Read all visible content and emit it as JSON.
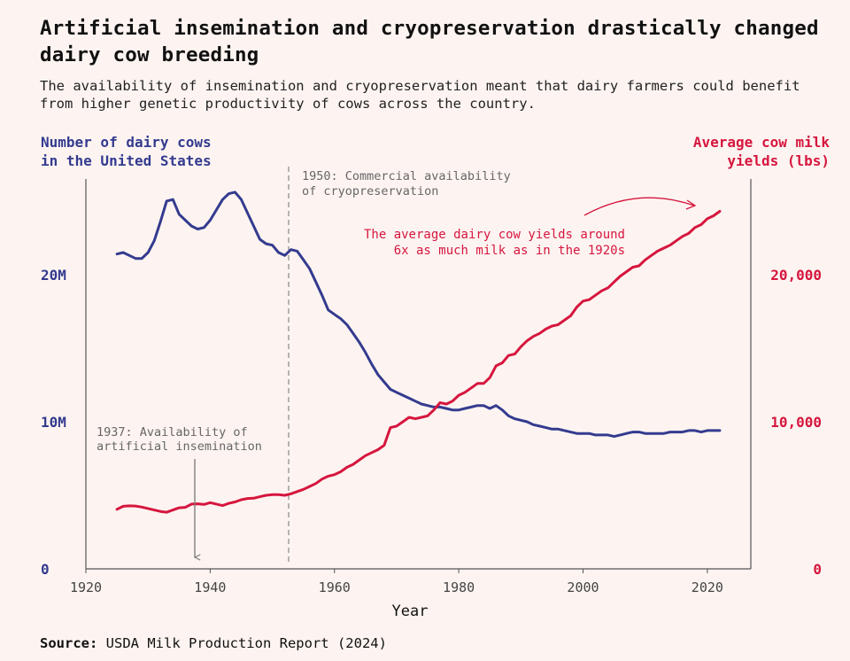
{
  "title": "Artificial insemination and cryopreservation drastically changed dairy cow breeding",
  "subtitle": "The availability of insemination and cryopreservation meant that dairy farmers could benefit from higher genetic productivity of cows across the country.",
  "source_label": "Source:",
  "source_text": "USDA Milk Production Report (2024)",
  "colors": {
    "cows": "#343b8f",
    "yield": "#d6163e",
    "axis": "#555555",
    "annotation": "#777777",
    "background": "#fdf4f1"
  },
  "chart_data": {
    "type": "line",
    "xlabel": "Year",
    "x_ticks": [
      1920,
      1940,
      1960,
      1980,
      2000,
      2020
    ],
    "xlim": [
      1920,
      2027
    ],
    "y_left": {
      "label_lines": [
        "Number of dairy cows",
        "in the United States"
      ],
      "ticks": [
        0,
        10,
        20
      ],
      "tick_labels": [
        "0",
        "10M",
        "20M"
      ],
      "unit": "million cows",
      "range": [
        0,
        26.5
      ]
    },
    "y_right": {
      "label_lines": [
        "Average cow milk",
        "yields (lbs)"
      ],
      "ticks": [
        0,
        10000,
        20000
      ],
      "tick_labels": [
        "0",
        "10,000",
        "20,000"
      ],
      "range": [
        0,
        26500
      ]
    },
    "series": [
      {
        "axis": "left",
        "x": [
          1925,
          1926,
          1927,
          1928,
          1929,
          1930,
          1931,
          1932,
          1933,
          1934,
          1935,
          1936,
          1937,
          1938,
          1939,
          1940,
          1941,
          1942,
          1943,
          1944,
          1945,
          1946,
          1947,
          1948,
          1949,
          1950,
          1951,
          1952,
          1953,
          1954,
          1955,
          1956,
          1957,
          1958,
          1959,
          1960,
          1961,
          1962,
          1963,
          1964,
          1965,
          1966,
          1967,
          1968,
          1969,
          1970,
          1971,
          1972,
          1973,
          1974,
          1975,
          1976,
          1977,
          1978,
          1979,
          1980,
          1981,
          1982,
          1983,
          1984,
          1985,
          1986,
          1987,
          1988,
          1989,
          1990,
          1991,
          1992,
          1993,
          1994,
          1995,
          1996,
          1997,
          1998,
          1999,
          2000,
          2001,
          2002,
          2003,
          2004,
          2005,
          2006,
          2007,
          2008,
          2009,
          2010,
          2011,
          2012,
          2013,
          2014,
          2015,
          2016,
          2017,
          2018,
          2019,
          2020,
          2021,
          2022
        ],
        "values": [
          21.4,
          21.5,
          21.3,
          21.1,
          21.1,
          21.5,
          22.3,
          23.6,
          25.0,
          25.1,
          24.1,
          23.7,
          23.3,
          23.1,
          23.2,
          23.7,
          24.4,
          25.1,
          25.5,
          25.6,
          25.1,
          24.2,
          23.3,
          22.4,
          22.1,
          22.0,
          21.5,
          21.3,
          21.7,
          21.6,
          21.0,
          20.4,
          19.5,
          18.6,
          17.6,
          17.3,
          17.0,
          16.6,
          16.0,
          15.4,
          14.7,
          13.9,
          13.2,
          12.7,
          12.2,
          12.0,
          11.8,
          11.6,
          11.4,
          11.2,
          11.1,
          11.0,
          11.0,
          10.9,
          10.8,
          10.8,
          10.9,
          11.0,
          11.1,
          11.1,
          10.9,
          11.1,
          10.8,
          10.4,
          10.2,
          10.1,
          10.0,
          9.8,
          9.7,
          9.6,
          9.5,
          9.5,
          9.4,
          9.3,
          9.2,
          9.2,
          9.2,
          9.1,
          9.1,
          9.1,
          9.0,
          9.1,
          9.2,
          9.3,
          9.3,
          9.2,
          9.2,
          9.2,
          9.2,
          9.3,
          9.3,
          9.3,
          9.4,
          9.4,
          9.3,
          9.4,
          9.4,
          9.4
        ]
      },
      {
        "axis": "right",
        "x": [
          1925,
          1926,
          1927,
          1928,
          1929,
          1930,
          1931,
          1932,
          1933,
          1934,
          1935,
          1936,
          1937,
          1938,
          1939,
          1940,
          1941,
          1942,
          1943,
          1944,
          1945,
          1946,
          1947,
          1948,
          1949,
          1950,
          1951,
          1952,
          1953,
          1954,
          1955,
          1956,
          1957,
          1958,
          1959,
          1960,
          1961,
          1962,
          1963,
          1964,
          1965,
          1966,
          1967,
          1968,
          1969,
          1970,
          1971,
          1972,
          1973,
          1974,
          1975,
          1976,
          1977,
          1978,
          1979,
          1980,
          1981,
          1982,
          1983,
          1984,
          1985,
          1986,
          1987,
          1988,
          1989,
          1990,
          1991,
          1992,
          1993,
          1994,
          1995,
          1996,
          1997,
          1998,
          1999,
          2000,
          2001,
          2002,
          2003,
          2004,
          2005,
          2006,
          2007,
          2008,
          2009,
          2010,
          2011,
          2012,
          2013,
          2014,
          2015,
          2016,
          2017,
          2018,
          2019,
          2020,
          2021,
          2022
        ],
        "values": [
          4050,
          4250,
          4280,
          4270,
          4200,
          4100,
          4000,
          3900,
          3850,
          4000,
          4150,
          4180,
          4400,
          4420,
          4380,
          4500,
          4400,
          4300,
          4450,
          4550,
          4700,
          4780,
          4800,
          4900,
          5000,
          5050,
          5050,
          5000,
          5100,
          5250,
          5400,
          5600,
          5800,
          6100,
          6300,
          6400,
          6600,
          6900,
          7100,
          7400,
          7700,
          7900,
          8100,
          8400,
          9600,
          9700,
          10000,
          10300,
          10200,
          10300,
          10400,
          10800,
          11300,
          11200,
          11400,
          11800,
          12000,
          12300,
          12600,
          12600,
          13000,
          13800,
          14000,
          14500,
          14600,
          15100,
          15500,
          15800,
          16000,
          16300,
          16500,
          16600,
          16900,
          17200,
          17800,
          18200,
          18300,
          18600,
          18900,
          19100,
          19500,
          19900,
          20200,
          20500,
          20600,
          21000,
          21300,
          21600,
          21800,
          22000,
          22300,
          22600,
          22800,
          23200,
          23400,
          23800,
          24000,
          24300
        ]
      }
    ],
    "annotations": [
      {
        "year": 1937,
        "lines": [
          "1937: Availability of",
          "artificial insemination"
        ]
      },
      {
        "year": 1952,
        "lines": [
          "1950: Commercial availability",
          "of cryopreservation"
        ]
      },
      {
        "lines": [
          "The average dairy cow yields around",
          "6x as much milk as in the 1920s"
        ]
      }
    ]
  }
}
